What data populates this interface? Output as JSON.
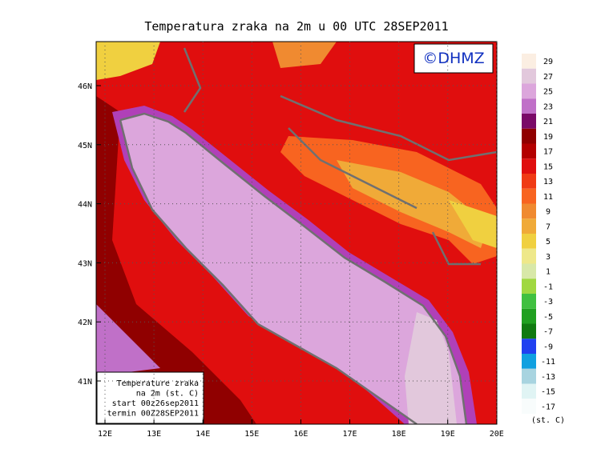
{
  "title": "Temperatura zraka na 2m u 00 UTC 28SEP2011",
  "logo": "©DHMZ",
  "x_axis": {
    "ticks": [
      "12E",
      "13E",
      "14E",
      "15E",
      "16E",
      "17E",
      "18E",
      "19E",
      "20E"
    ]
  },
  "y_axis": {
    "ticks": [
      "46N",
      "45N",
      "44N",
      "43N",
      "42N",
      "41N"
    ]
  },
  "info_box": {
    "lines": [
      "Temperature zraka",
      "na 2m (st. C)",
      "start 00z26sep2011",
      "termin 00Z28SEP2011"
    ]
  },
  "legend": {
    "unit": "(st. C)",
    "entries": [
      {
        "value": 29,
        "color": "#fbeee2"
      },
      {
        "value": 27,
        "color": "#e2c8dc"
      },
      {
        "value": 25,
        "color": "#dca6dc"
      },
      {
        "value": 23,
        "color": "#c070c8"
      },
      {
        "value": 21,
        "color": "#7a0a68"
      },
      {
        "value": 19,
        "color": "#900000"
      },
      {
        "value": 17,
        "color": "#b40000"
      },
      {
        "value": 15,
        "color": "#e00e0e"
      },
      {
        "value": 13,
        "color": "#f03a14"
      },
      {
        "value": 11,
        "color": "#f86420"
      },
      {
        "value": 9,
        "color": "#f08a30"
      },
      {
        "value": 7,
        "color": "#f0aa38"
      },
      {
        "value": 5,
        "color": "#f0d040"
      },
      {
        "value": 3,
        "color": "#eee88a"
      },
      {
        "value": 1,
        "color": "#d8e8a8"
      },
      {
        "value": -1,
        "color": "#a0d840"
      },
      {
        "value": -3,
        "color": "#40c040"
      },
      {
        "value": -5,
        "color": "#20a020"
      },
      {
        "value": -7,
        "color": "#107a10"
      },
      {
        "value": -9,
        "color": "#2040f0"
      },
      {
        "value": -11,
        "color": "#10a0e0"
      },
      {
        "value": -13,
        "color": "#a8d4e0"
      },
      {
        "value": -15,
        "color": "#e0f4f4"
      },
      {
        "value": -17,
        "color": "#f8fcfc"
      }
    ]
  }
}
